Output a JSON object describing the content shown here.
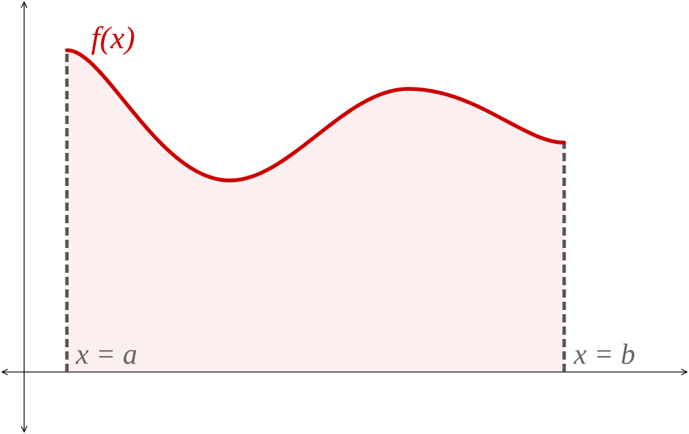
{
  "function_label": "f(x)",
  "lower_bound_label": "x = a",
  "upper_bound_label": "x = b"
}
